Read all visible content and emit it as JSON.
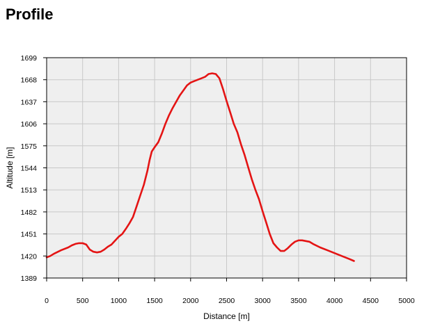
{
  "header": {
    "title": "Profile"
  },
  "chart_data": {
    "type": "line",
    "title": "Profile",
    "xlabel": "Distance [m]",
    "ylabel": "Altitude [m]",
    "xlim": [
      0,
      5000
    ],
    "ylim": [
      1389,
      1699
    ],
    "x_ticks": [
      0,
      500,
      1000,
      1500,
      2000,
      2500,
      3000,
      3500,
      4000,
      4500,
      5000
    ],
    "y_ticks": [
      1389,
      1420,
      1451,
      1482,
      1513,
      1544,
      1575,
      1606,
      1637,
      1668,
      1699
    ],
    "grid": true,
    "colors": {
      "line": "#e41414",
      "plot_bg": "#efefef",
      "grid": "#c8c8c8",
      "frame": "#000000"
    },
    "series": [
      {
        "x": [
          0,
          50,
          100,
          200,
          300,
          350,
          400,
          450,
          500,
          550,
          600,
          650,
          700,
          750,
          800,
          850,
          900,
          1000,
          1050,
          1100,
          1150,
          1200,
          1250,
          1300,
          1350,
          1400,
          1430,
          1460,
          1500,
          1550,
          1600,
          1650,
          1700,
          1750,
          1800,
          1850,
          1900,
          1950,
          2000,
          2050,
          2100,
          2150,
          2200,
          2250,
          2300,
          2350,
          2400,
          2450,
          2500,
          2550,
          2600,
          2650,
          2700,
          2750,
          2800,
          2850,
          2900,
          2950,
          3000,
          3050,
          3100,
          3150,
          3200,
          3250,
          3300,
          3350,
          3400,
          3450,
          3500,
          3550,
          3600,
          3650,
          3700,
          3800,
          3900,
          4000,
          4100,
          4200,
          4270
        ],
        "y": [
          1418,
          1420,
          1423,
          1428,
          1432,
          1435,
          1437,
          1438,
          1438,
          1436,
          1429,
          1426,
          1425,
          1426,
          1429,
          1433,
          1436,
          1447,
          1451,
          1458,
          1466,
          1475,
          1490,
          1505,
          1520,
          1540,
          1555,
          1567,
          1573,
          1580,
          1592,
          1606,
          1618,
          1628,
          1637,
          1646,
          1653,
          1660,
          1664,
          1666,
          1668,
          1670,
          1672,
          1676,
          1677,
          1676,
          1670,
          1655,
          1638,
          1622,
          1606,
          1594,
          1577,
          1562,
          1545,
          1528,
          1513,
          1500,
          1483,
          1467,
          1451,
          1438,
          1432,
          1427,
          1427,
          1431,
          1436,
          1440,
          1442,
          1442,
          1441,
          1440,
          1437,
          1432,
          1428,
          1424,
          1420,
          1416,
          1413
        ]
      }
    ]
  }
}
